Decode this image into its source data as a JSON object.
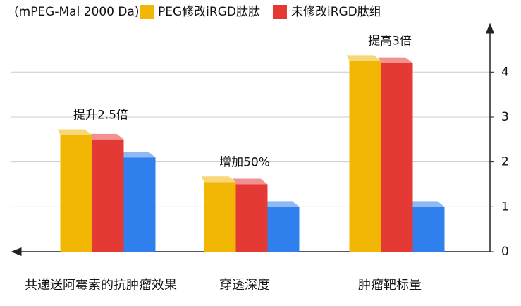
{
  "chart_data": {
    "type": "bar",
    "legend_note": "(mPEG-Mal 2000 Da)",
    "categories": [
      "共递送阿霉素的抗肿瘤效果",
      "穿透深度",
      "肿瘤靶标量"
    ],
    "annotations": [
      "提升2.5倍",
      "增加50%",
      "提高3倍"
    ],
    "series": [
      {
        "name": "PEG修改iRGD肽肽",
        "color": "#f2b705",
        "values": [
          2.6,
          1.55,
          4.25
        ]
      },
      {
        "name": "未修改iRGD肽组",
        "color": "#e53935",
        "values": [
          2.5,
          1.5,
          4.2
        ]
      },
      {
        "color": "#2f80ed",
        "values": [
          2.1,
          1.0,
          1.0
        ]
      }
    ],
    "ylim": [
      0,
      4.9
    ],
    "yticks": [
      0,
      1,
      2,
      3,
      4
    ],
    "grid": true,
    "y_axis_side": "right"
  }
}
